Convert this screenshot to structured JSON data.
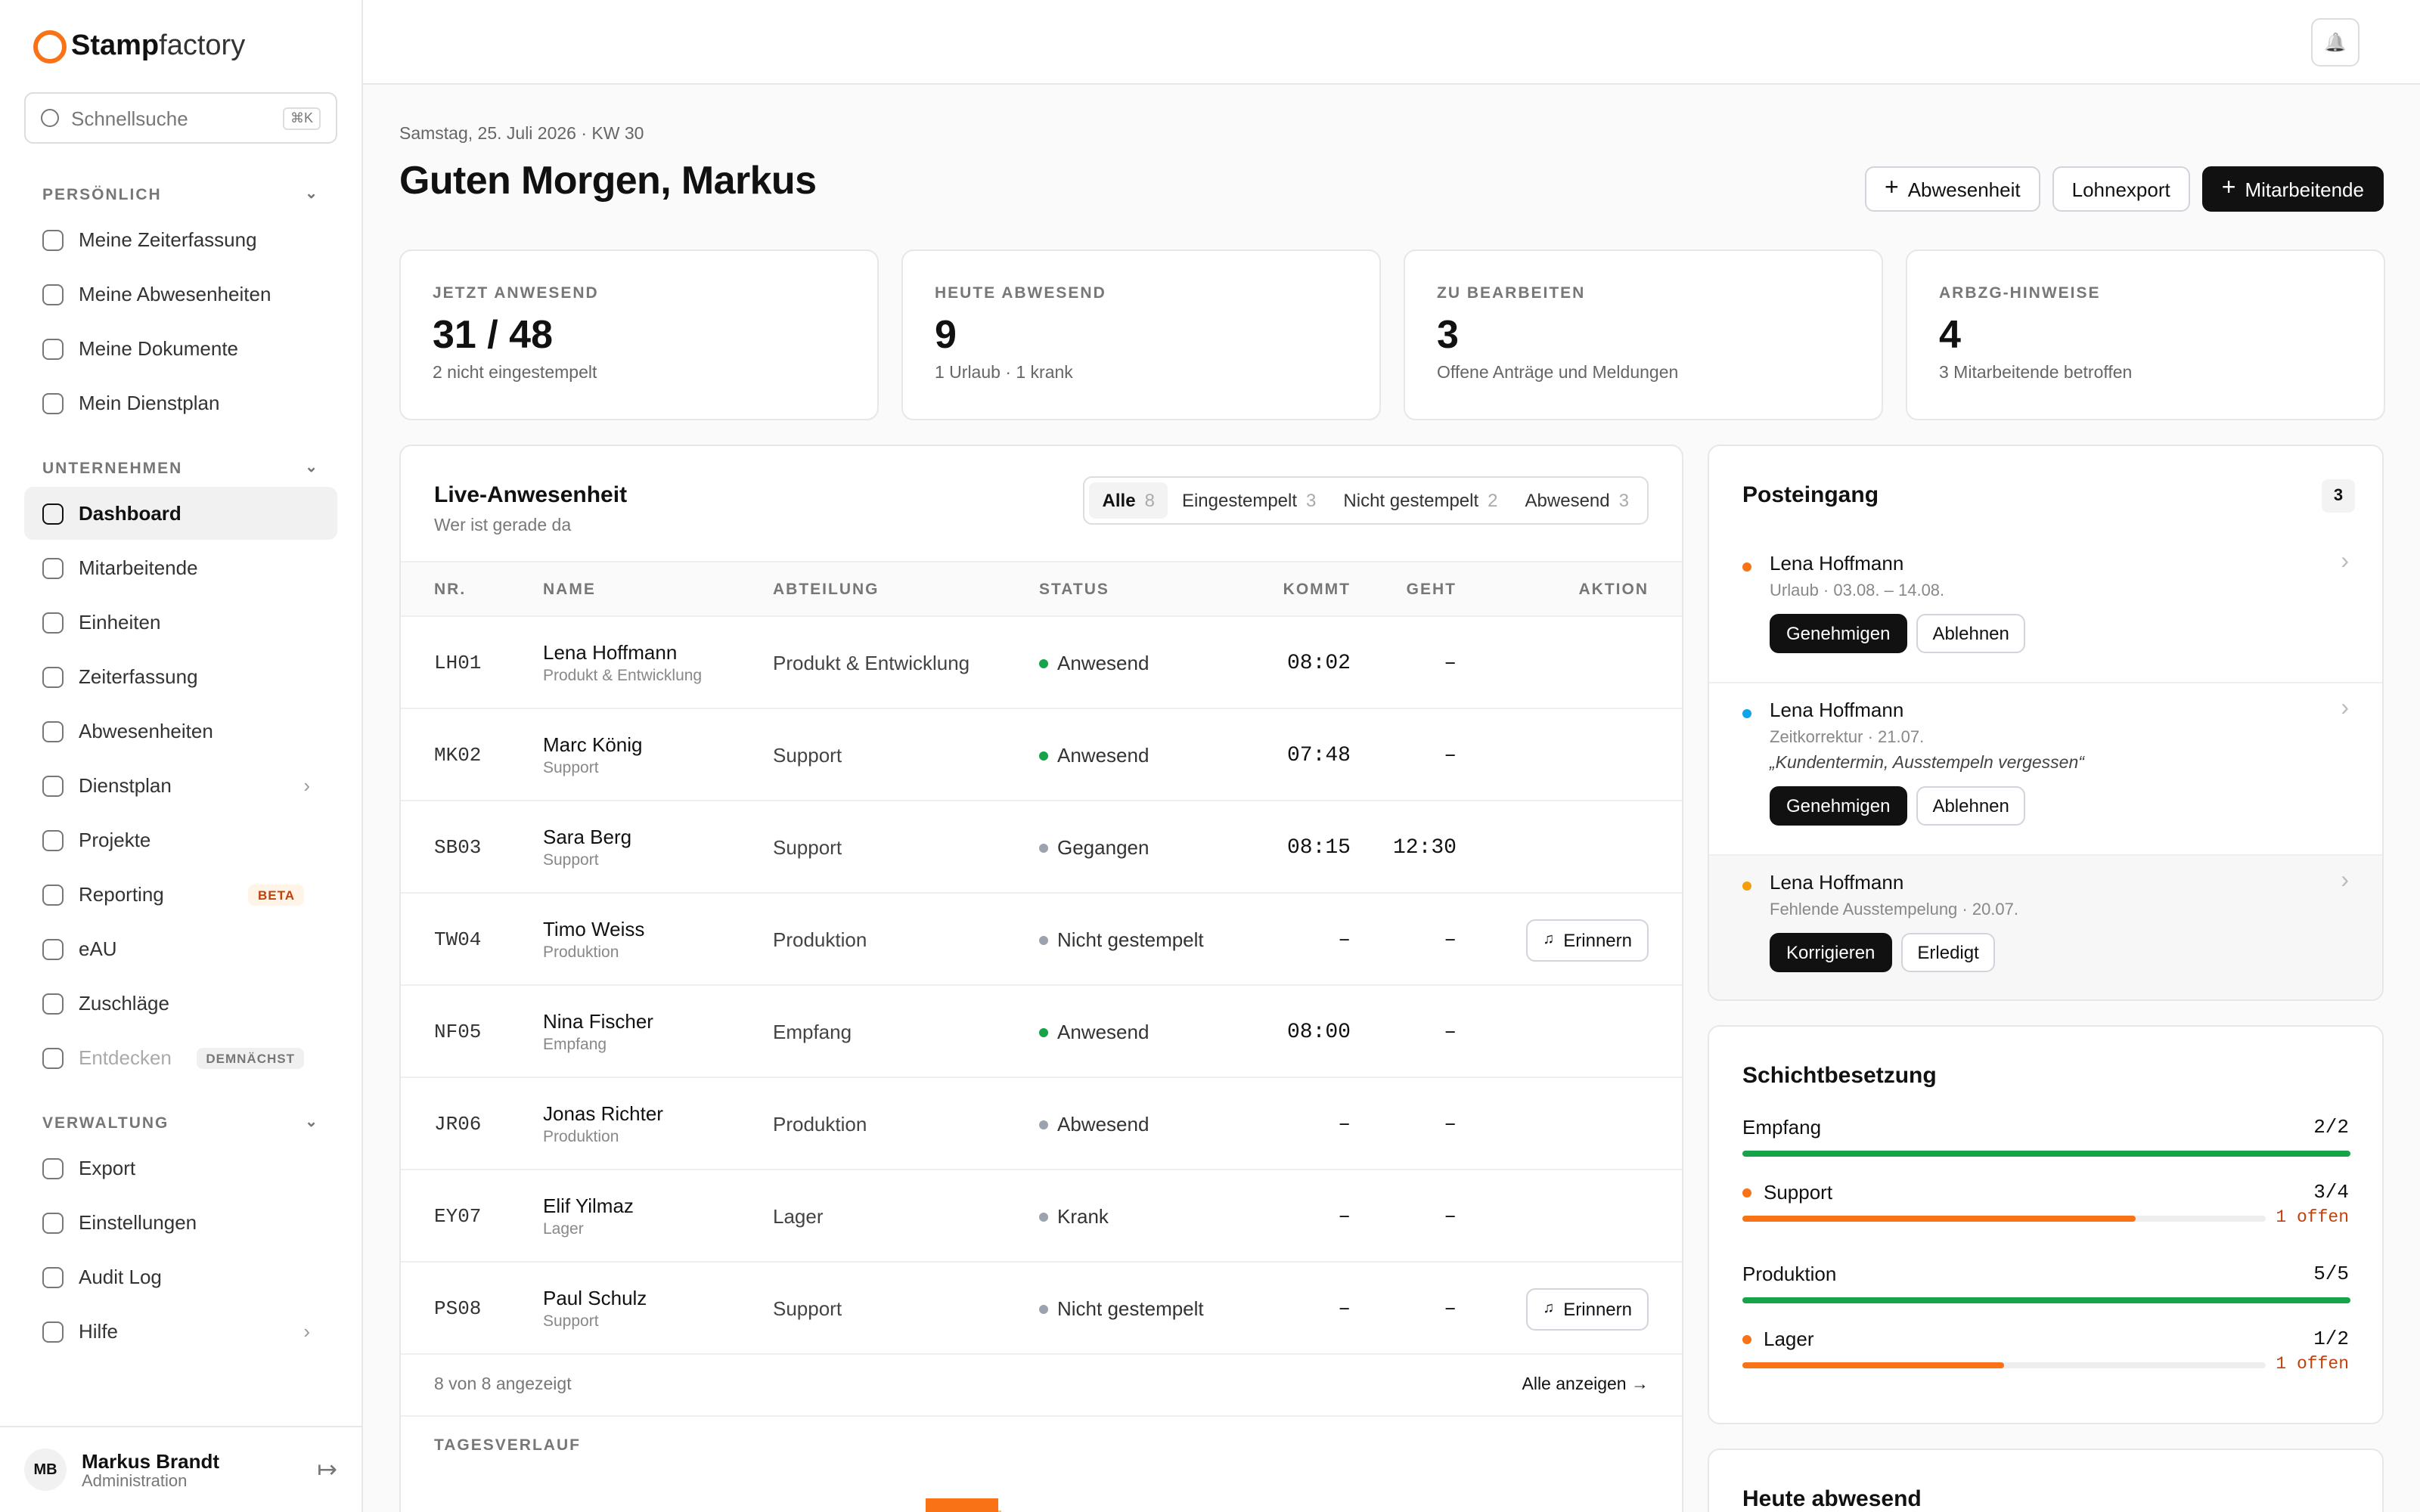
{
  "brand": {
    "name_a": "Stamp",
    "name_b": "factory"
  },
  "search": {
    "placeholder": "Schnellsuche",
    "shortcut": "⌘K"
  },
  "nav": [
    {
      "title": "PERSÖNLICH",
      "items": [
        {
          "label": "Meine Zeiterfassung"
        },
        {
          "label": "Meine Abwesenheiten"
        },
        {
          "label": "Meine Dokumente"
        },
        {
          "label": "Mein Dienstplan"
        }
      ]
    },
    {
      "title": "UNTERNEHMEN",
      "items": [
        {
          "label": "Dashboard",
          "active": true
        },
        {
          "label": "Mitarbeitende"
        },
        {
          "label": "Einheiten"
        },
        {
          "label": "Zeiterfassung"
        },
        {
          "label": "Abwesenheiten"
        },
        {
          "label": "Dienstplan",
          "chevron": true
        },
        {
          "label": "Projekte"
        },
        {
          "label": "Reporting",
          "badge": "BETA"
        },
        {
          "label": "eAU"
        },
        {
          "label": "Zuschläge"
        },
        {
          "label": "Entdecken",
          "badge": "DEMNÄCHST",
          "disabled": true
        }
      ]
    },
    {
      "title": "VERWALTUNG",
      "items": [
        {
          "label": "Export"
        },
        {
          "label": "Einstellungen"
        },
        {
          "label": "Audit Log"
        },
        {
          "label": "Hilfe",
          "chevron": true
        }
      ]
    }
  ],
  "user": {
    "initials": "MB",
    "name": "Markus Brandt",
    "role": "Administration"
  },
  "header": {
    "date": "Samstag, 25. Juli 2026 · KW 30",
    "greeting": "Guten Morgen, Markus",
    "buttons": [
      "Abwesenheit",
      "Lohnexport",
      "Mitarbeitende"
    ]
  },
  "kpis": [
    {
      "label": "JETZT ANWESEND",
      "value": "31 / 48",
      "sub": "2 nicht eingestempelt"
    },
    {
      "label": "HEUTE ABWESEND",
      "value": "9",
      "sub": "1 Urlaub · 1 krank"
    },
    {
      "label": "ZU BEARBEITEN",
      "value": "3",
      "sub": "Offene Anträge und Meldungen"
    },
    {
      "label": "ARBZG-HINWEISE",
      "value": "4",
      "sub": "3 Mitarbeitende betroffen"
    }
  ],
  "live": {
    "title": "Live-Anwesenheit",
    "subtitle": "Wer ist gerade da",
    "filters": [
      {
        "label": "Alle",
        "count": "8"
      },
      {
        "label": "Eingestempelt",
        "count": "3"
      },
      {
        "label": "Nicht gestempelt",
        "count": "2"
      },
      {
        "label": "Abwesend",
        "count": "3"
      }
    ],
    "columns": [
      "NR.",
      "NAME",
      "ABTEILUNG",
      "STATUS",
      "KOMMT",
      "GEHT",
      "AKTION"
    ],
    "rows": [
      {
        "nr": "LH01",
        "name": "Lena Hoffmann",
        "unit": "Produkt & Entwicklung",
        "dept": "Produkt & Entwicklung",
        "status": "Anwesend",
        "dot": "#16a34a",
        "in": "08:02",
        "out": "–"
      },
      {
        "nr": "MK02",
        "name": "Marc König",
        "unit": "Support",
        "dept": "Support",
        "status": "Anwesend",
        "dot": "#16a34a",
        "in": "07:48",
        "out": "–"
      },
      {
        "nr": "SB03",
        "name": "Sara Berg",
        "unit": "Support",
        "dept": "Support",
        "status": "Gegangen",
        "dot": "#9ca3af",
        "in": "08:15",
        "out": "12:30"
      },
      {
        "nr": "TW04",
        "name": "Timo Weiss",
        "unit": "Produktion",
        "dept": "Produktion",
        "status": "Nicht gestempelt",
        "dot": "#9ca3af",
        "in": "–",
        "out": "–",
        "action": "Erinnern"
      },
      {
        "nr": "NF05",
        "name": "Nina Fischer",
        "unit": "Empfang",
        "dept": "Empfang",
        "status": "Anwesend",
        "dot": "#16a34a",
        "in": "08:00",
        "out": "–"
      },
      {
        "nr": "JR06",
        "name": "Jonas Richter",
        "unit": "Produktion",
        "dept": "Produktion",
        "status": "Abwesend",
        "dot": "#9ca3af",
        "in": "–",
        "out": "–"
      },
      {
        "nr": "EY07",
        "name": "Elif Yilmaz",
        "unit": "Lager",
        "dept": "Lager",
        "status": "Krank",
        "dot": "#9ca3af",
        "in": "–",
        "out": "–"
      },
      {
        "nr": "PS08",
        "name": "Paul Schulz",
        "unit": "Support",
        "dept": "Support",
        "status": "Nicht gestempelt",
        "dot": "#9ca3af",
        "in": "–",
        "out": "–",
        "action": "Erinnern"
      }
    ],
    "footer": "8 von 8 angezeigt",
    "show_all": "Alle anzeigen →",
    "timeline": "TAGESVERLAUF"
  },
  "inbox": {
    "title": "Posteingang",
    "count": "3",
    "items": [
      {
        "name": "Lena Hoffmann",
        "detail": "Urlaub · 03.08. – 14.08.",
        "dot": "#f97316",
        "actions": [
          "Genehmigen",
          "Ablehnen"
        ]
      },
      {
        "name": "Lena Hoffmann",
        "detail": "Zeitkorrektur · 21.07.",
        "quote": "„Kundentermin, Ausstempeln vergessen“",
        "dot": "#0ea5e9",
        "actions": [
          "Genehmigen",
          "Ablehnen"
        ]
      },
      {
        "name": "Lena Hoffmann",
        "detail": "Fehlende Ausstempelung · 20.07.",
        "dot": "#f59e0b",
        "actions": [
          "Korrigieren",
          "Erledigt"
        ],
        "highlight": true
      }
    ]
  },
  "shifts": {
    "title": "Schichtbesetzung",
    "rows": [
      {
        "name": "Empfang",
        "ratio": "2/2",
        "color": "#16a34a"
      },
      {
        "name": "Support",
        "ratio": "3/4",
        "open": "1 offen",
        "color": "#f97316"
      },
      {
        "name": "Produktion",
        "ratio": "5/5",
        "color": "#16a34a"
      },
      {
        "name": "Lager",
        "ratio": "1/2",
        "open": "1 offen",
        "color": "#f97316"
      }
    ]
  },
  "absent": {
    "title": "Heute abwesend"
  }
}
